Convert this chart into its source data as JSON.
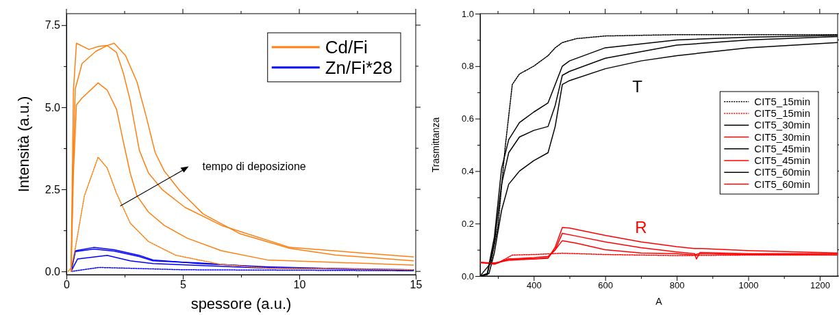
{
  "chart_data": [
    {
      "type": "line",
      "xlabel": "spessore (a.u.)",
      "ylabel": "Intensità (a.u.)",
      "xlim": [
        0,
        15
      ],
      "ylim": [
        -0.1,
        7.85
      ],
      "xticks": [
        0,
        {
          "value": 2.5,
          "label": null
        },
        5,
        {
          "value": 7.5,
          "label": null
        },
        10,
        {
          "value": 12.5,
          "label": null
        },
        15
      ],
      "yticks": [
        {
          "value": 0,
          "label": "0.0"
        },
        {
          "value": 1.25,
          "label": null
        },
        {
          "value": 2.5,
          "label": "2.5"
        },
        {
          "value": 3.75,
          "label": null
        },
        {
          "value": 5,
          "label": "5.0"
        },
        {
          "value": 6.25,
          "label": null
        },
        {
          "value": 7.5,
          "label": "7.5"
        }
      ],
      "grid": false,
      "legend": "top right",
      "annotations": [
        "tempo di deposizione"
      ],
      "series": [
        {
          "name": "Cd/Fi",
          "color": "#ff7f0e",
          "line_style": "solid",
          "x": [
            0.2,
            0.3,
            0.38,
            0.67,
            1.26,
            1.75,
            2.05,
            2.54,
            3.03,
            3.42,
            3.81,
            4.2,
            4.89,
            5.87,
            7.44,
            9.6,
            11.56,
            14.9
          ],
          "values": [
            0,
            3.5,
            5.56,
            6.33,
            6.7,
            6.88,
            6.95,
            6.57,
            5.77,
            4.73,
            3.62,
            3.06,
            2.44,
            1.75,
            1.15,
            0.7,
            0.5,
            0.32
          ]
        },
        {
          "color": "#ff7f0e",
          "line_style": "solid",
          "x": [
            0.2,
            0.3,
            0.43,
            0.97,
            1.37,
            1.75,
            2.15,
            2.44,
            2.74,
            3.13,
            3.52,
            4.1,
            5.09,
            6.66,
            9.6,
            14.9
          ],
          "values": [
            0,
            5.5,
            6.95,
            6.76,
            6.85,
            6.88,
            6.67,
            6.05,
            5.2,
            3.69,
            3.0,
            2.5,
            1.95,
            1.4,
            0.73,
            0.44
          ]
        },
        {
          "color": "#ff7f0e",
          "line_style": "solid",
          "x": [
            0.2,
            0.3,
            0.43,
            0.67,
            1.36,
            1.75,
            2.15,
            2.44,
            2.74,
            3.03,
            3.52,
            4.2,
            5.19,
            6.66,
            8.62,
            14.9
          ],
          "values": [
            0,
            3.0,
            5.07,
            5.28,
            5.74,
            5.52,
            4.94,
            3.96,
            2.99,
            2.3,
            1.81,
            1.4,
            1.01,
            0.63,
            0.35,
            0.19
          ]
        },
        {
          "color": "#ff7f0e",
          "line_style": "dotted",
          "x": [
            0.07,
            0.2,
            0.38,
            0.77,
            1.36,
            1.75,
            2.15,
            2.74,
            3.52,
            4.7,
            6.66,
            8.62,
            14.9
          ],
          "values": [
            0,
            0.1,
            0.7,
            2.3,
            3.48,
            3.15,
            2.38,
            1.47,
            0.91,
            0.49,
            0.21,
            0.1,
            0.05
          ]
        },
        {
          "name": "Zn/Fi*28",
          "color": "#0000ff",
          "line_style": "solid",
          "x": [
            0.2,
            0.38,
            1.17,
            2.05,
            3.13,
            3.72,
            5.68,
            8.62,
            14.9
          ],
          "values": [
            0,
            0.63,
            0.73,
            0.66,
            0.49,
            0.35,
            0.24,
            0.14,
            0.02
          ]
        },
        {
          "color": "#0000ff",
          "line_style": "solid",
          "x": [
            0.2,
            0.38,
            1.17,
            2.05,
            3.13,
            3.72,
            5.68,
            8.62,
            14.9
          ],
          "values": [
            0,
            0.6,
            0.68,
            0.62,
            0.45,
            0.32,
            0.26,
            0.12,
            0.05
          ]
        },
        {
          "color": "#0000ff",
          "line_style": "solid",
          "x": [
            0.2,
            0.48,
            1.75,
            2.74,
            3.72,
            8.62,
            14.9
          ],
          "values": [
            0,
            0.38,
            0.49,
            0.32,
            0.24,
            0.1,
            0.04
          ]
        },
        {
          "color": "#0000ff",
          "line_style": "dotted",
          "x": [
            0.2,
            0.5,
            1.4,
            2.5,
            5,
            14.9
          ],
          "values": [
            0,
            0.03,
            0.12,
            0.1,
            0.05,
            0.02
          ]
        }
      ]
    },
    {
      "type": "line",
      "xlabel": "A",
      "ylabel": "Trasmittanza",
      "xlim": [
        250,
        1250
      ],
      "ylim": [
        0,
        1
      ],
      "xticks": [
        {
          "value": 300,
          "label": null
        },
        400,
        {
          "value": 500,
          "label": null
        },
        600,
        {
          "value": 700,
          "label": null
        },
        800,
        {
          "value": 900,
          "label": null
        },
        1000,
        {
          "value": 1100,
          "label": null
        },
        1200
      ],
      "yticks": [
        {
          "value": 0,
          "label": "0.0"
        },
        {
          "value": 0.1,
          "label": null
        },
        {
          "value": 0.2,
          "label": "0.2"
        },
        {
          "value": 0.3,
          "label": null
        },
        {
          "value": 0.4,
          "label": "0.4"
        },
        {
          "value": 0.5,
          "label": null
        },
        {
          "value": 0.6,
          "label": "0.6"
        },
        {
          "value": 0.7,
          "label": null
        },
        {
          "value": 0.8,
          "label": "0.8"
        },
        {
          "value": 0.9,
          "label": null
        },
        {
          "value": 1,
          "label": "1.0"
        }
      ],
      "grid": false,
      "legend": "right",
      "annotations": [
        "T",
        "R"
      ],
      "series": [
        {
          "name": "CIT5_15min",
          "color": "#000000",
          "line_style": "dotted",
          "x": [
            250,
            280,
            300,
            320,
            340,
            360,
            400,
            440,
            460,
            480,
            520,
            600,
            800,
            1250
          ],
          "values": [
            0,
            0.05,
            0.19,
            0.49,
            0.73,
            0.77,
            0.8,
            0.84,
            0.87,
            0.89,
            0.905,
            0.915,
            0.92,
            0.92
          ]
        },
        {
          "name": "CIT5_15min",
          "color": "#ff0000",
          "line_style": "dotted",
          "x": [
            250,
            300,
            340,
            400,
            480,
            600,
            800,
            1000,
            1250
          ],
          "values": [
            0.05,
            0.05,
            0.08,
            0.082,
            0.087,
            0.082,
            0.078,
            0.08,
            0.08
          ]
        },
        {
          "name": "CIT5_30min",
          "color": "#000000",
          "line_style": "solid",
          "x": [
            250,
            270,
            290,
            310,
            330,
            360,
            400,
            440,
            460,
            480,
            500,
            600,
            800,
            1000,
            1250
          ],
          "values": [
            0,
            0.01,
            0.15,
            0.41,
            0.52,
            0.585,
            0.625,
            0.66,
            0.73,
            0.8,
            0.82,
            0.87,
            0.9,
            0.91,
            0.917
          ]
        },
        {
          "name": "CIT5_30min",
          "color": "#ff0000",
          "line_style": "solid",
          "x": [
            250,
            290,
            330,
            400,
            440,
            460,
            480,
            520,
            600,
            700,
            800,
            850,
            860,
            1000,
            1250
          ],
          "values": [
            0.052,
            0.047,
            0.065,
            0.07,
            0.075,
            0.1,
            0.135,
            0.125,
            0.1,
            0.088,
            0.085,
            0.08,
            0.085,
            0.082,
            0.08
          ]
        },
        {
          "name": "CIT5_45min",
          "color": "#000000",
          "line_style": "solid",
          "x": [
            250,
            270,
            290,
            310,
            330,
            360,
            400,
            440,
            460,
            480,
            500,
            600,
            800,
            1000,
            1250
          ],
          "values": [
            0,
            0.005,
            0.13,
            0.35,
            0.47,
            0.53,
            0.555,
            0.57,
            0.65,
            0.765,
            0.78,
            0.83,
            0.88,
            0.9,
            0.913
          ]
        },
        {
          "name": "CIT5_45min",
          "color": "#ff0000",
          "line_style": "solid",
          "x": [
            250,
            290,
            330,
            400,
            440,
            460,
            480,
            520,
            600,
            700,
            800,
            850,
            855,
            865,
            1000,
            1250
          ],
          "values": [
            0.052,
            0.045,
            0.065,
            0.065,
            0.07,
            0.1,
            0.163,
            0.152,
            0.13,
            0.108,
            0.092,
            0.085,
            0.065,
            0.09,
            0.085,
            0.085
          ]
        },
        {
          "name": "CIT5_60min",
          "color": "#000000",
          "line_style": "solid",
          "x": [
            250,
            275,
            290,
            310,
            330,
            360,
            400,
            440,
            460,
            480,
            500,
            600,
            700,
            800,
            1000,
            1250
          ],
          "values": [
            0,
            0.01,
            0.09,
            0.25,
            0.35,
            0.4,
            0.44,
            0.47,
            0.57,
            0.73,
            0.745,
            0.79,
            0.82,
            0.84,
            0.87,
            0.89
          ]
        },
        {
          "name": "CIT5_60min",
          "color": "#ff0000",
          "line_style": "solid",
          "x": [
            250,
            290,
            330,
            400,
            440,
            460,
            480,
            500,
            600,
            700,
            800,
            850,
            870,
            1000,
            1250
          ],
          "values": [
            0.052,
            0.05,
            0.06,
            0.065,
            0.068,
            0.11,
            0.185,
            0.183,
            0.155,
            0.13,
            0.112,
            0.105,
            0.105,
            0.097,
            0.088
          ]
        }
      ]
    }
  ]
}
